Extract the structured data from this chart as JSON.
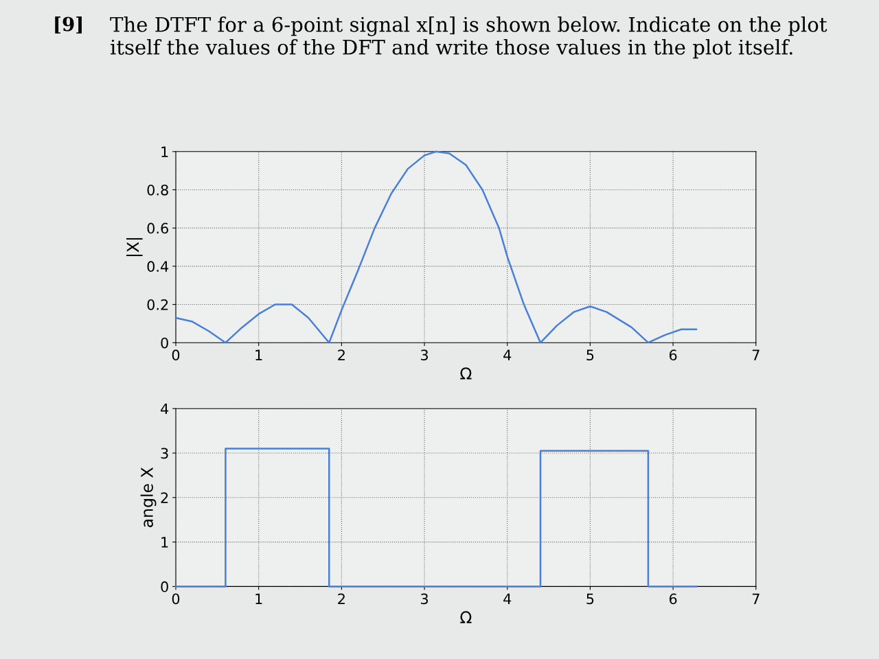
{
  "chart_data": [
    {
      "type": "line",
      "title": "The DTFT for a 6-point signal x[n] is shown below. Indicate on the plot itself the values of the DFT and write those values in the plot itself.",
      "annotations": [
        "[9]"
      ],
      "xlabel": "Ω",
      "ylabel": "|X|",
      "xlim": [
        0,
        7
      ],
      "xticks": [
        0,
        1,
        2,
        3,
        4,
        5,
        6,
        7
      ],
      "ylim": [
        0,
        1
      ],
      "yticks": [
        0,
        0.2,
        0.4,
        0.6,
        0.8,
        1
      ],
      "grid": true,
      "series": [
        {
          "color": "#4a7fd8",
          "x": [
            0,
            0.2,
            0.4,
            0.6,
            0.8,
            1.0,
            1.2,
            1.4,
            1.6,
            1.85,
            2.0,
            2.2,
            2.4,
            2.6,
            2.8,
            3.0,
            3.14,
            3.3,
            3.5,
            3.7,
            3.9,
            4.0,
            4.2,
            4.4,
            4.6,
            4.8,
            5.0,
            5.2,
            5.5,
            5.7,
            5.9,
            6.1,
            6.28
          ],
          "values": [
            0.13,
            0.11,
            0.06,
            0,
            0.08,
            0.15,
            0.2,
            0.2,
            0.13,
            0,
            0.17,
            0.38,
            0.6,
            0.78,
            0.91,
            0.98,
            1.0,
            0.99,
            0.93,
            0.8,
            0.6,
            0.45,
            0.2,
            0,
            0.09,
            0.16,
            0.19,
            0.16,
            0.08,
            0,
            0.04,
            0.07,
            0.07
          ]
        }
      ]
    },
    {
      "type": "line",
      "xlabel": "Ω",
      "ylabel": "angle X",
      "xlim": [
        0,
        7
      ],
      "xticks": [
        0,
        1,
        2,
        3,
        4,
        5,
        6,
        7
      ],
      "ylim": [
        0,
        4
      ],
      "yticks": [
        0,
        1,
        2,
        3,
        4
      ],
      "grid": true,
      "series": [
        {
          "color": "#4a7fd8",
          "x": [
            0,
            0.6,
            0.6,
            1.85,
            1.85,
            4.4,
            4.4,
            5.7,
            5.7,
            6.28
          ],
          "values": [
            0,
            0,
            3.1,
            3.1,
            0,
            0,
            3.05,
            3.05,
            0,
            0
          ]
        }
      ]
    }
  ]
}
